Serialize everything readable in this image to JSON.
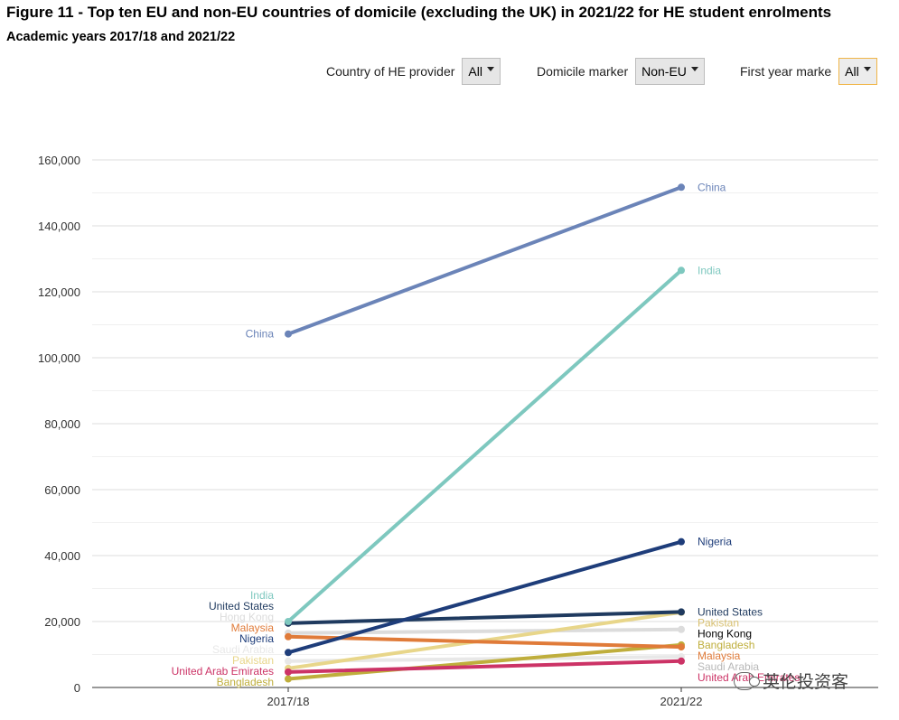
{
  "title": "Figure 11 - Top ten EU and non-EU countries of domicile (excluding the UK) in 2021/22 for HE student enrolments",
  "subtitle": "Academic years 2017/18 and 2021/22",
  "filters": [
    {
      "label": "Country of HE provider",
      "value": "All",
      "highlight": false
    },
    {
      "label": "Domicile marker",
      "value": "Non-EU",
      "highlight": false
    },
    {
      "label": "First year marke",
      "value": "All",
      "highlight": true
    }
  ],
  "watermark": "英伦投资客",
  "chart_data": {
    "type": "line",
    "x": [
      "2017/18",
      "2021/22"
    ],
    "ylim": [
      0,
      160000
    ],
    "yticks": [
      0,
      20000,
      40000,
      60000,
      80000,
      100000,
      120000,
      140000,
      160000
    ],
    "ytick_labels": [
      "0",
      "20,000",
      "40,000",
      "60,000",
      "80,000",
      "100,000",
      "120,000",
      "140,000",
      "160,000"
    ],
    "grid": true,
    "series": [
      {
        "name": "Hong Kong",
        "values": [
          16500,
          17600
        ],
        "color": "#dcdcdc",
        "label_color_end": "#000000"
      },
      {
        "name": "Saudi Arabia",
        "values": [
          8000,
          9300
        ],
        "color": "#e8e8e8",
        "label_color_end": "#b8b8b8"
      },
      {
        "name": "Pakistan",
        "values": [
          5800,
          22800
        ],
        "color": "#e8d68a",
        "label_color_end": "#d8c070"
      },
      {
        "name": "Bangladesh",
        "values": [
          2600,
          12900
        ],
        "color": "#bfae3c",
        "label_color_end": "#bfae3c"
      },
      {
        "name": "Malaysia",
        "values": [
          15400,
          12300
        ],
        "color": "#e07b39",
        "label_color_end": "#e07b39"
      },
      {
        "name": "United Arab Emirates",
        "values": [
          4700,
          8000
        ],
        "color": "#cc3366",
        "label_color_end": "#cc3366"
      },
      {
        "name": "United States",
        "values": [
          19500,
          22900
        ],
        "color": "#1f3a5f",
        "label_color_end": "#1f3a5f"
      },
      {
        "name": "Nigeria",
        "values": [
          10600,
          44200
        ],
        "color": "#1e3d7a",
        "label_color_end": "#1e3d7a"
      },
      {
        "name": "India",
        "values": [
          20000,
          126500
        ],
        "color": "#7ec8bf",
        "label_color_end": "#7ec8bf"
      },
      {
        "name": "China",
        "values": [
          107200,
          151700
        ],
        "color": "#6b84b8",
        "label_color_end": "#6b84b8"
      }
    ],
    "start_labels": [
      {
        "text": "China",
        "series": "China"
      },
      {
        "text": "India",
        "series": "India"
      },
      {
        "text": "United States",
        "series": "United States"
      },
      {
        "text": "Hong Kong",
        "series": "Hong Kong"
      },
      {
        "text": "Malaysia",
        "series": "Malaysia"
      },
      {
        "text": "Nigeria",
        "series": "Nigeria"
      },
      {
        "text": "Saudi Arabia",
        "series": "Saudi Arabia"
      },
      {
        "text": "Pakistan",
        "series": "Pakistan"
      },
      {
        "text": "United Arab Emirates",
        "series": "United Arab Emirates"
      },
      {
        "text": "Bangladesh",
        "series": "Bangladesh"
      }
    ],
    "end_labels": [
      {
        "text": "China",
        "series": "China"
      },
      {
        "text": "India",
        "series": "India"
      },
      {
        "text": "Nigeria",
        "series": "Nigeria"
      },
      {
        "text": "United States",
        "series": "United States"
      },
      {
        "text": "Hong Kong",
        "series": "Hong Kong"
      },
      {
        "text": "Pakistan",
        "series": "Pakistan"
      },
      {
        "text": "Bangladesh",
        "series": "Bangladesh"
      },
      {
        "text": "Malaysia",
        "series": "Malaysia"
      },
      {
        "text": "Saudi Arabia",
        "series": "Saudi Arabia"
      },
      {
        "text": "United Arab Emirates",
        "series": "United Arab Emirates"
      }
    ]
  }
}
